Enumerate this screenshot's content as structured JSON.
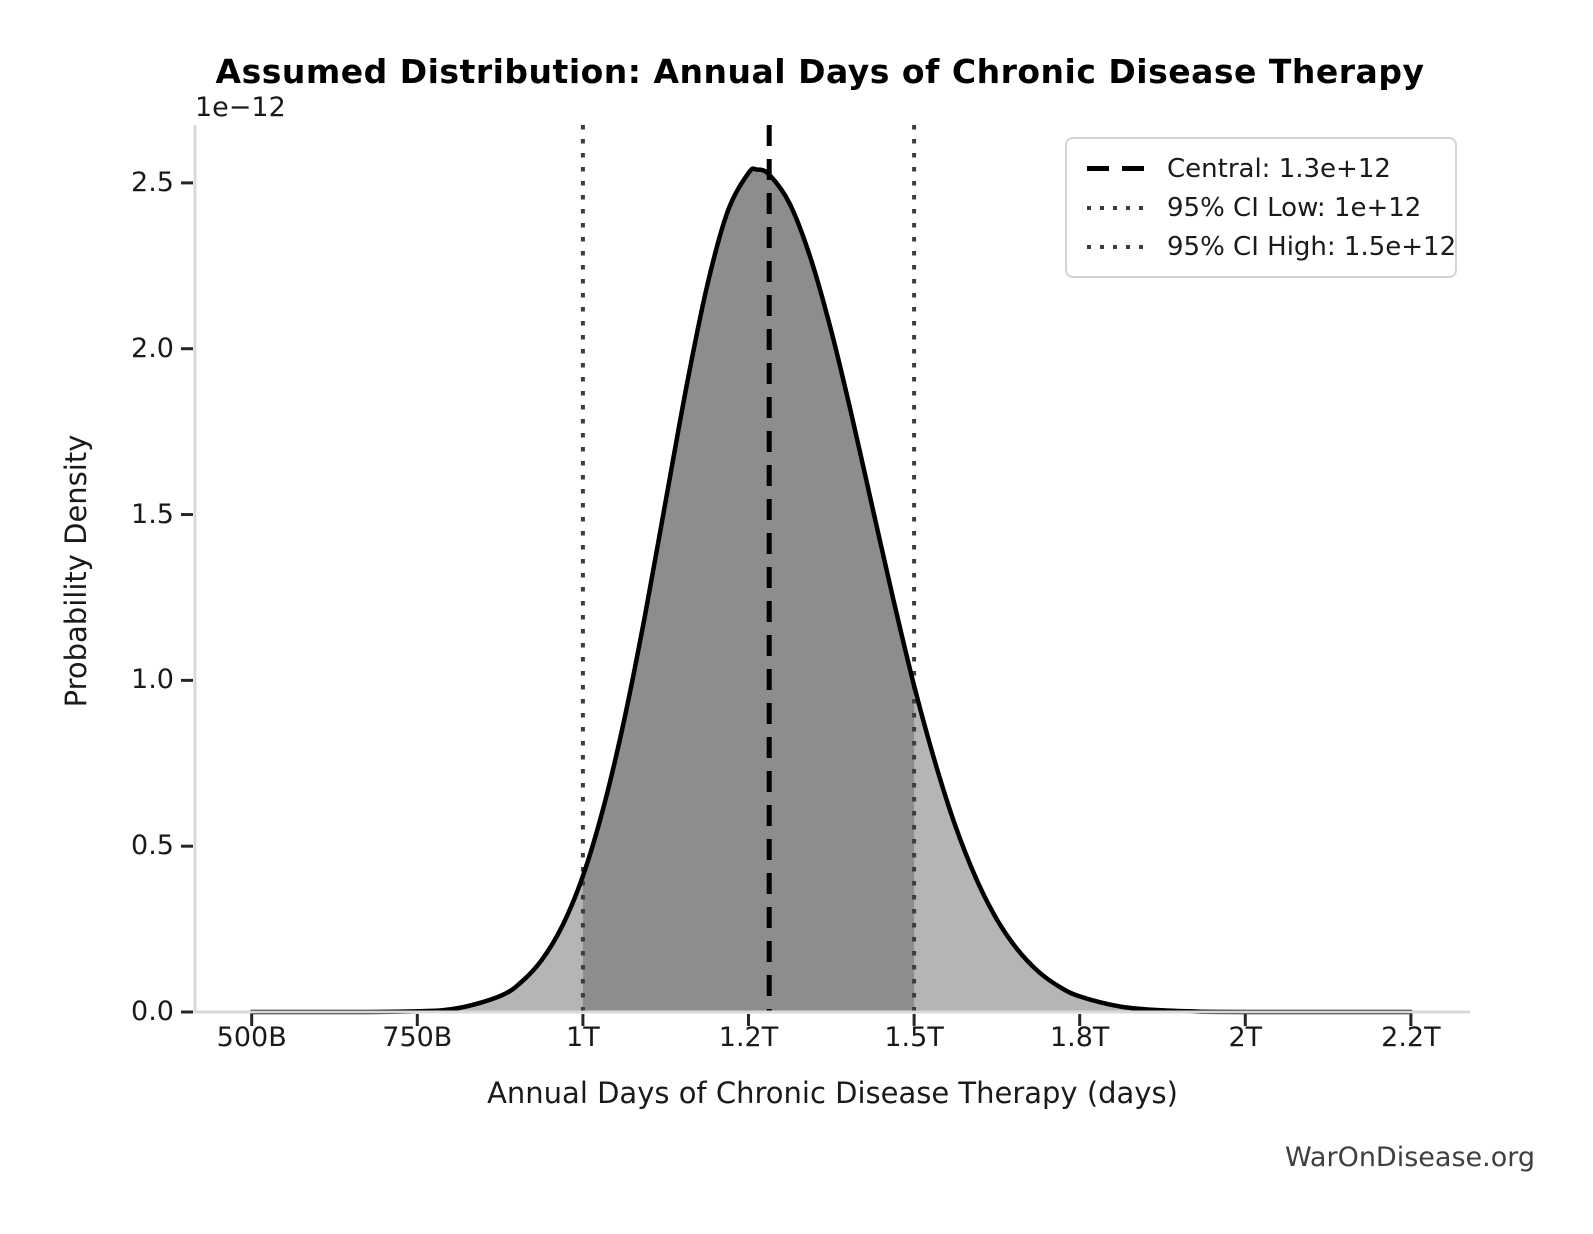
{
  "watermark": "WarOnDisease.org",
  "chart_data": {
    "type": "area",
    "title": "Assumed Distribution: Annual Days of Chronic Disease Therapy",
    "xlabel": "Annual Days of Chronic Disease Therapy (days)",
    "ylabel": "Probability Density",
    "y_offset_label": "1e−12",
    "x_ticklabels": [
      "500B",
      "750B",
      "1T",
      "1.2T",
      "1.5T",
      "1.8T",
      "2T",
      "2.2T"
    ],
    "x_tickvalues_trillions": [
      0.5,
      0.75,
      1.0,
      1.2,
      1.5,
      1.8,
      2.0,
      2.2
    ],
    "y_ticklabels": [
      "0.0",
      "0.5",
      "1.0",
      "1.5",
      "2.0",
      "2.5"
    ],
    "y_tickvalues": [
      0.0,
      0.5,
      1.0,
      1.5,
      2.0,
      2.5
    ],
    "ylim": [
      0,
      2.675
    ],
    "y_units": "1e-12",
    "grid": false,
    "curve": {
      "name": "probability-density",
      "points": [
        [
          0.5,
          0
        ],
        [
          0.625,
          0
        ],
        [
          0.75,
          0.002
        ],
        [
          0.8125,
          0.012
        ],
        [
          0.875,
          0.048
        ],
        [
          0.90625,
          0.089
        ],
        [
          0.9375,
          0.156
        ],
        [
          0.96875,
          0.259
        ],
        [
          1.0,
          0.41
        ],
        [
          1.025,
          0.618
        ],
        [
          1.05,
          0.882
        ],
        [
          1.075,
          1.196
        ],
        [
          1.1,
          1.541
        ],
        [
          1.125,
          1.885
        ],
        [
          1.15,
          2.189
        ],
        [
          1.175,
          2.415
        ],
        [
          1.2,
          2.53
        ],
        [
          1.215,
          2.54
        ],
        [
          1.2375,
          2.525
        ],
        [
          1.275,
          2.436
        ],
        [
          1.3125,
          2.273
        ],
        [
          1.35,
          2.053
        ],
        [
          1.3875,
          1.795
        ],
        [
          1.425,
          1.518
        ],
        [
          1.4625,
          1.243
        ],
        [
          1.5,
          0.984
        ],
        [
          1.5375,
          0.756
        ],
        [
          1.575,
          0.56
        ],
        [
          1.6125,
          0.402
        ],
        [
          1.65,
          0.279
        ],
        [
          1.6875,
          0.188
        ],
        [
          1.725,
          0.122
        ],
        [
          1.7625,
          0.077
        ],
        [
          1.8,
          0.047
        ],
        [
          1.85,
          0.016
        ],
        [
          1.9,
          0.005
        ],
        [
          1.95,
          0.001
        ],
        [
          2.0,
          0
        ],
        [
          2.1,
          0
        ],
        [
          2.2,
          0
        ]
      ]
    },
    "markers": {
      "central": {
        "value_label": "1.3e+12",
        "x_trillions": 1.2375,
        "style": "dashed",
        "color": "#000000"
      },
      "ci_low": {
        "value_label": "1e+12",
        "x_trillions": 1.0,
        "style": "dotted",
        "color": "#3d3d3d"
      },
      "ci_high": {
        "value_label": "1.5e+12",
        "x_trillions": 1.5,
        "style": "dotted",
        "color": "#3d3d3d"
      }
    },
    "shaded_ci_region": {
      "from_trillions": 1.0,
      "to_trillions": 1.5
    },
    "legend": {
      "position": "upper right",
      "entries": [
        {
          "style": "dashed",
          "label": "Central: 1.3e+12"
        },
        {
          "style": "dotted",
          "label": "95% CI Low: 1e+12"
        },
        {
          "style": "dotted",
          "label": "95% CI High: 1.5e+12"
        }
      ]
    },
    "colors": {
      "curve": "#000000",
      "fill_light": "#b5b5b5",
      "fill_dark": "#8d8d8d",
      "dotted_lines": "#3d3d3d",
      "dashed_line": "#000000",
      "spine": "#d9d9d9",
      "tick_mark": "#262626"
    }
  }
}
